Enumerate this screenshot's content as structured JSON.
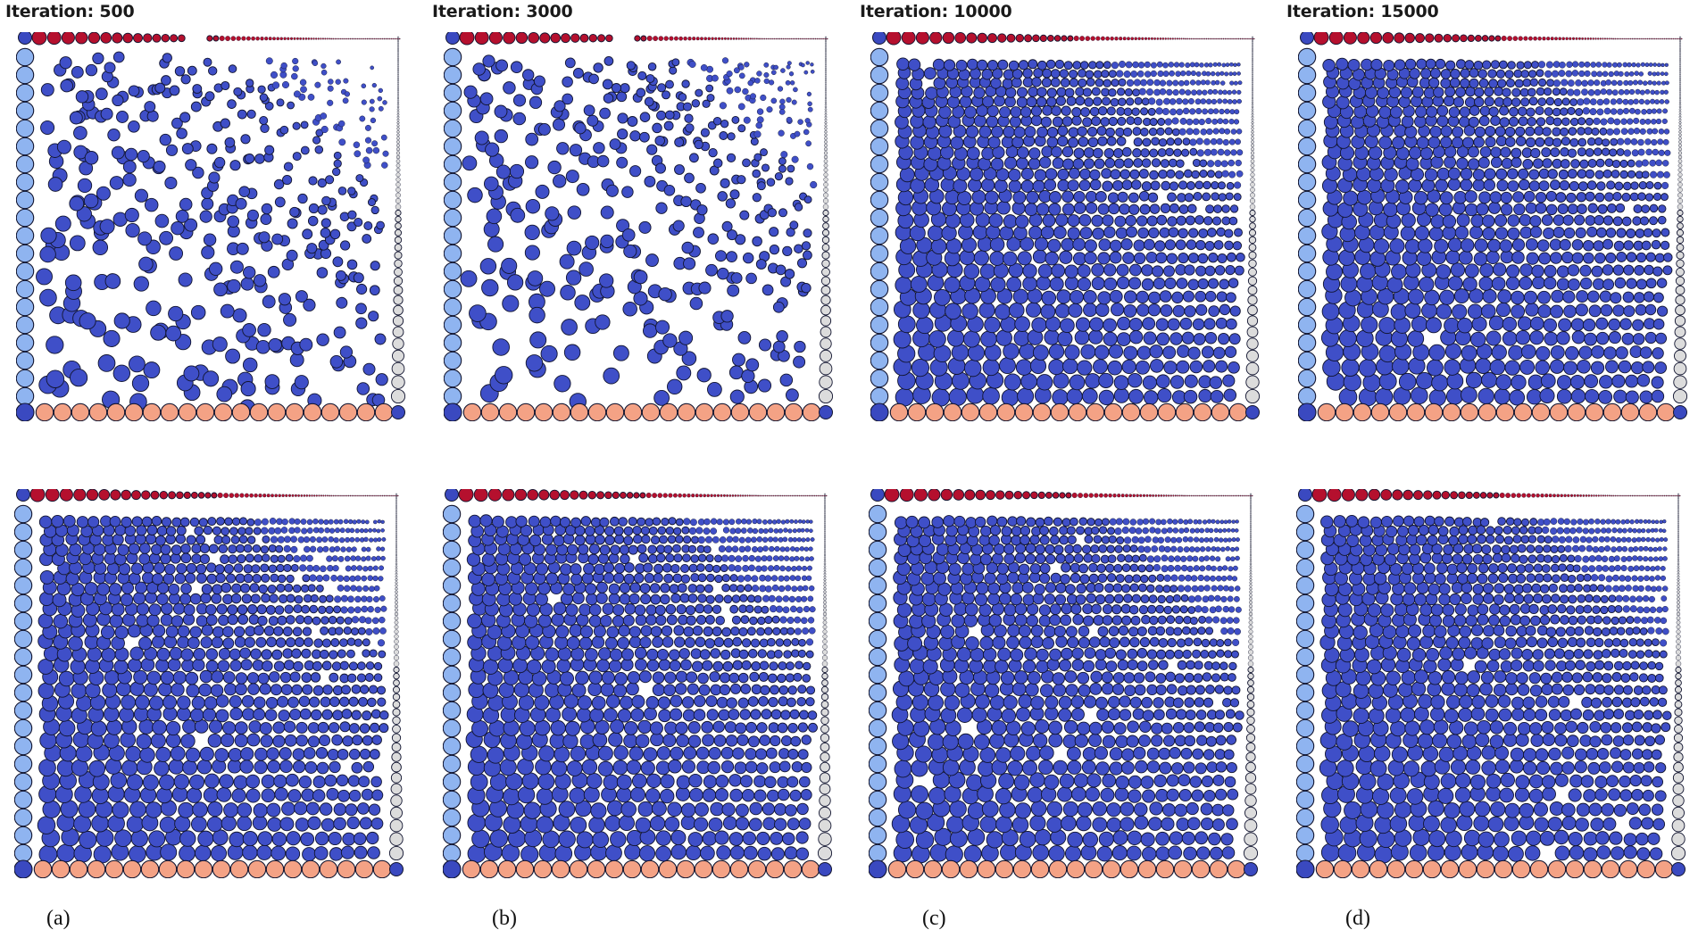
{
  "columns": [
    {
      "iteration_label": "Iteration: 500",
      "caption": "(a)",
      "top_fill": 0.45,
      "bottom_fill": 0.97
    },
    {
      "iteration_label": "Iteration: 3000",
      "caption": "(b)",
      "top_fill": 0.47,
      "bottom_fill": 0.99
    },
    {
      "iteration_label": "Iteration: 10000",
      "caption": "(c)",
      "top_fill": 0.99,
      "bottom_fill": 0.99
    },
    {
      "iteration_label": "Iteration: 15000",
      "caption": "(d)",
      "top_fill": 0.995,
      "bottom_fill": 0.995
    }
  ],
  "colors": {
    "interior_particle": "#3f4fc8",
    "top_wall_particle": "#b5102e",
    "bottom_wall_particle": "#f4a285",
    "left_wall_particle": "#8fb4f0",
    "right_wall_particle": "#dcdcdc",
    "corner_particle": "#3a49c0",
    "particle_outline": "#121530"
  }
}
